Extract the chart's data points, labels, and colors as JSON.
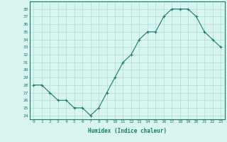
{
  "x": [
    0,
    1,
    2,
    3,
    4,
    5,
    6,
    7,
    8,
    9,
    10,
    11,
    12,
    13,
    14,
    15,
    16,
    17,
    18,
    19,
    20,
    21,
    22,
    23
  ],
  "y": [
    28,
    28,
    27,
    26,
    26,
    25,
    25,
    24,
    25,
    27,
    29,
    31,
    32,
    34,
    35,
    35,
    37,
    38,
    38,
    38,
    37,
    35,
    34,
    33
  ],
  "line_color": "#1a7a6e",
  "marker": "+",
  "bg_color": "#d8f5f0",
  "grid_color": "#b0ddd8",
  "xlabel": "Humidex (Indice chaleur)",
  "ylabel_ticks": [
    24,
    25,
    26,
    27,
    28,
    29,
    30,
    31,
    32,
    33,
    34,
    35,
    36,
    37,
    38
  ],
  "ylim": [
    23.5,
    39.0
  ],
  "xlim": [
    -0.5,
    23.5
  ]
}
